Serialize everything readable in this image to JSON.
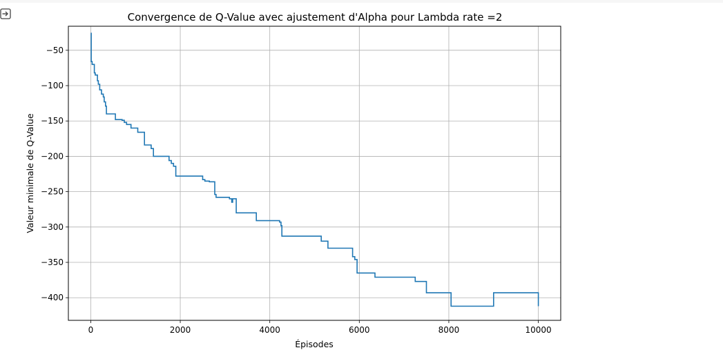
{
  "cell": {
    "output_icon": "output-arrow-icon"
  },
  "colors": {
    "line": "#1f77b4",
    "grid": "#b0b0b0",
    "axis": "#000000"
  },
  "chart_data": {
    "type": "line",
    "title": "Convergence de Q-Value avec ajustement d'Alpha pour Lambda rate =2",
    "xlabel": "Épisodes",
    "ylabel": "Valeur minimale de Q-Value",
    "xlim": [
      -500,
      10500
    ],
    "ylim": [
      -432,
      -16
    ],
    "grid": true,
    "xticks": [
      0,
      2000,
      4000,
      6000,
      8000,
      10000
    ],
    "yticks": [
      -50,
      -100,
      -150,
      -200,
      -250,
      -300,
      -350,
      -400
    ],
    "xtick_labels": [
      "0",
      "2000",
      "4000",
      "6000",
      "8000",
      "10000"
    ],
    "ytick_labels": [
      "−50",
      "−100",
      "−150",
      "−200",
      "−250",
      "−300",
      "−350",
      "−400"
    ],
    "series": [
      {
        "style": "step",
        "x": [
          0,
          10,
          30,
          80,
          100,
          150,
          170,
          200,
          240,
          280,
          300,
          330,
          350,
          370,
          550,
          700,
          750,
          800,
          900,
          1050,
          1200,
          1350,
          1400,
          1450,
          1550,
          1750,
          1800,
          1850,
          1900,
          2000,
          2250,
          2450,
          2500,
          2550,
          2650,
          2750,
          2770,
          2800,
          2900,
          3000,
          3100,
          3150,
          3170,
          3200,
          3250,
          3700,
          4000,
          4220,
          4250,
          4270,
          5150,
          5300,
          5600,
          5850,
          5900,
          5950,
          6350,
          6700,
          7230,
          7250,
          7500,
          8000,
          8050,
          8500,
          9000,
          9500,
          9950,
          10000
        ],
        "y": [
          -26,
          -66,
          -70,
          -82,
          -85,
          -93,
          -98,
          -106,
          -112,
          -116,
          -123,
          -129,
          -140,
          -140,
          -148,
          -149,
          -152,
          -155,
          -160,
          -166,
          -184,
          -189,
          -200,
          -200,
          -200,
          -206,
          -210,
          -214,
          -228,
          -228,
          -228,
          -228,
          -233,
          -235,
          -236,
          -236,
          -254,
          -258,
          -258,
          -258,
          -260,
          -265,
          -260,
          -260,
          -280,
          -291,
          -291,
          -293,
          -298,
          -313,
          -320,
          -330,
          -330,
          -342,
          -346,
          -365,
          -371,
          -371,
          -371,
          -377,
          -393,
          -393,
          -412,
          -412,
          -393,
          -393,
          -393,
          -412
        ]
      }
    ]
  }
}
